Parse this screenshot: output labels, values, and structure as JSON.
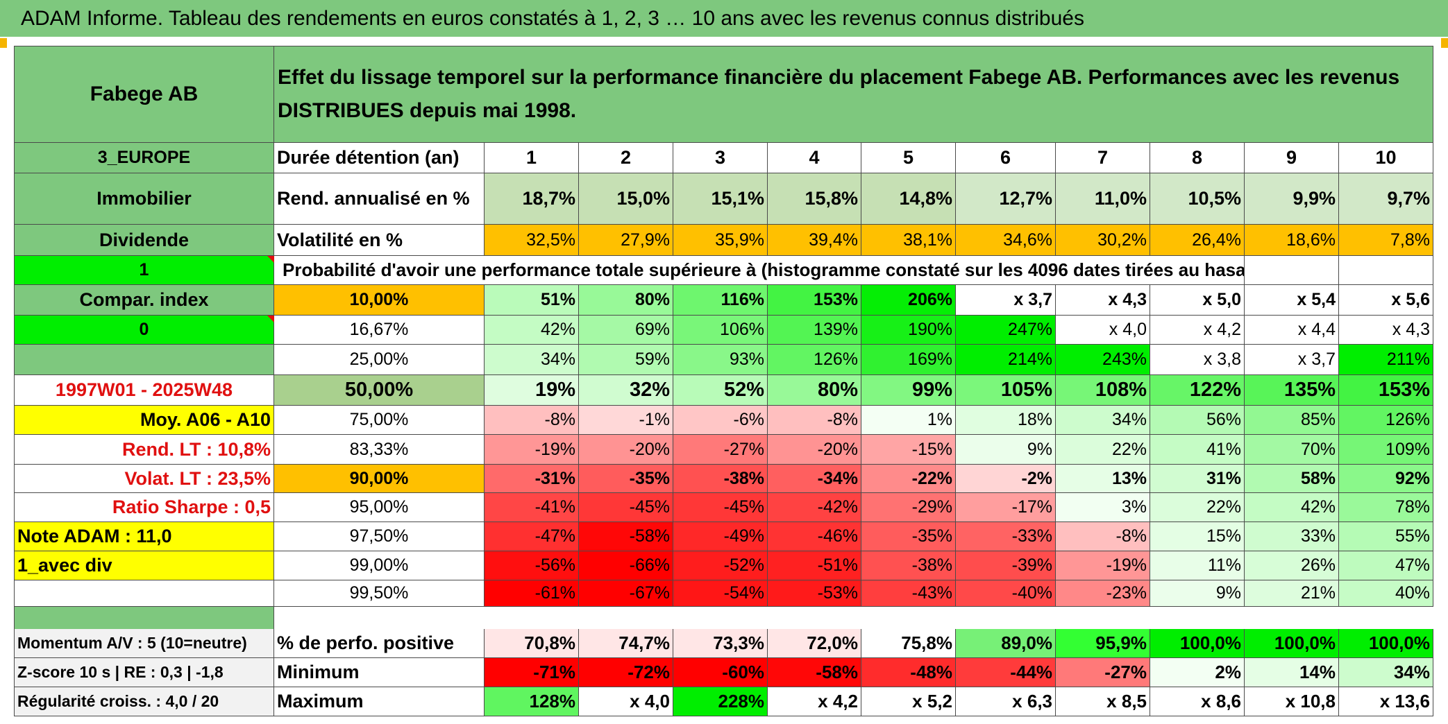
{
  "title": "ADAM Informe. Tableau des rendements en euros constatés à 1, 2, 3 … 10 ans avec les revenus connus distribués",
  "side": {
    "company": "Fabege AB",
    "region": "3_EUROPE",
    "sector": "Immobilier",
    "dividend": "Dividende",
    "flag1": "1",
    "compar": "Compar. index",
    "flag0": "0",
    "period": "1997W01 - 2025W48",
    "moy": "Moy. A06 - A10",
    "rend_lt": "Rend. LT :   10,8%",
    "volat_lt": "Volat. LT :   23,5%",
    "sharpe": "Ratio Sharpe :    0,5",
    "note": "Note ADAM : 11,0",
    "avec_div": "1_avec div"
  },
  "description": "Effet du lissage temporel sur la performance financière du placement Fabege AB. Performances avec les revenus DISTRIBUES depuis mai 1998.",
  "duration_label": "Durée détention (an)",
  "durations": [
    "1",
    "2",
    "3",
    "4",
    "5",
    "6",
    "7",
    "8",
    "9",
    "10"
  ],
  "rend_label": "Rend. annualisé en %",
  "rend": [
    "18,7%",
    "15,0%",
    "15,1%",
    "15,8%",
    "14,8%",
    "12,7%",
    "11,0%",
    "10,5%",
    "9,9%",
    "9,7%"
  ],
  "vol_label": "Volatilité en %",
  "vol": [
    "32,5%",
    "27,9%",
    "35,9%",
    "39,4%",
    "38,1%",
    "34,6%",
    "30,2%",
    "26,4%",
    "18,6%",
    "7,8%"
  ],
  "prob_header": "Probabilité d'avoir une performance totale supérieure à (histogramme constaté sur les 4096 dates tirées au hasard)",
  "prob_rows": [
    {
      "p": "10,00%",
      "v": [
        "51%",
        "80%",
        "116%",
        "153%",
        "206%",
        "x 3,7",
        "x 4,3",
        "x 5,0",
        "x 5,4",
        "x 5,6"
      ]
    },
    {
      "p": "16,67%",
      "v": [
        "42%",
        "69%",
        "106%",
        "139%",
        "190%",
        "247%",
        "x 4,0",
        "x 4,2",
        "x 4,4",
        "x 4,3"
      ]
    },
    {
      "p": "25,00%",
      "v": [
        "34%",
        "59%",
        "93%",
        "126%",
        "169%",
        "214%",
        "243%",
        "x 3,8",
        "x 3,7",
        "211%"
      ]
    },
    {
      "p": "50,00%",
      "v": [
        "19%",
        "32%",
        "52%",
        "80%",
        "99%",
        "105%",
        "108%",
        "122%",
        "135%",
        "153%"
      ]
    },
    {
      "p": "75,00%",
      "v": [
        "-8%",
        "-1%",
        "-6%",
        "-8%",
        "1%",
        "18%",
        "34%",
        "56%",
        "85%",
        "126%"
      ]
    },
    {
      "p": "83,33%",
      "v": [
        "-19%",
        "-20%",
        "-27%",
        "-20%",
        "-15%",
        "9%",
        "22%",
        "41%",
        "70%",
        "109%"
      ]
    },
    {
      "p": "90,00%",
      "v": [
        "-31%",
        "-35%",
        "-38%",
        "-34%",
        "-22%",
        "-2%",
        "13%",
        "31%",
        "58%",
        "92%"
      ]
    },
    {
      "p": "95,00%",
      "v": [
        "-41%",
        "-45%",
        "-45%",
        "-42%",
        "-29%",
        "-17%",
        "3%",
        "22%",
        "42%",
        "78%"
      ]
    },
    {
      "p": "97,50%",
      "v": [
        "-47%",
        "-58%",
        "-49%",
        "-46%",
        "-35%",
        "-33%",
        "-8%",
        "15%",
        "33%",
        "55%"
      ]
    },
    {
      "p": "99,00%",
      "v": [
        "-56%",
        "-66%",
        "-52%",
        "-51%",
        "-38%",
        "-39%",
        "-19%",
        "11%",
        "26%",
        "47%"
      ]
    },
    {
      "p": "99,50%",
      "v": [
        "-61%",
        "-67%",
        "-54%",
        "-53%",
        "-43%",
        "-40%",
        "-23%",
        "9%",
        "21%",
        "40%"
      ]
    }
  ],
  "bottom": [
    {
      "left": "Momentum A/V : 5 (10=neutre)",
      "label": "% de perfo. positive",
      "v": [
        "70,8%",
        "74,7%",
        "73,3%",
        "72,0%",
        "75,8%",
        "89,0%",
        "95,9%",
        "100,0%",
        "100,0%",
        "100,0%"
      ]
    },
    {
      "left": "Z-score 10 s | RE : 0,3 | -1,8",
      "label": "Minimum",
      "v": [
        "-71%",
        "-72%",
        "-60%",
        "-58%",
        "-48%",
        "-44%",
        "-27%",
        "2%",
        "14%",
        "34%"
      ]
    },
    {
      "left": "Régularité croiss. : 4,0 / 20",
      "label": "Maximum",
      "v": [
        "128%",
        "x 4,0",
        "228%",
        "x 4,2",
        "x 5,2",
        "x 6,3",
        "x 8,5",
        "x 8,6",
        "x 10,8",
        "x 13,6"
      ]
    }
  ],
  "colors": {
    "green_header": "#7ec87e",
    "bright_green": "#00ee00",
    "orange": "#ffc000",
    "yellow": "#ffff00",
    "red_text": "#e01010",
    "light_green": "#c6e0b4"
  }
}
